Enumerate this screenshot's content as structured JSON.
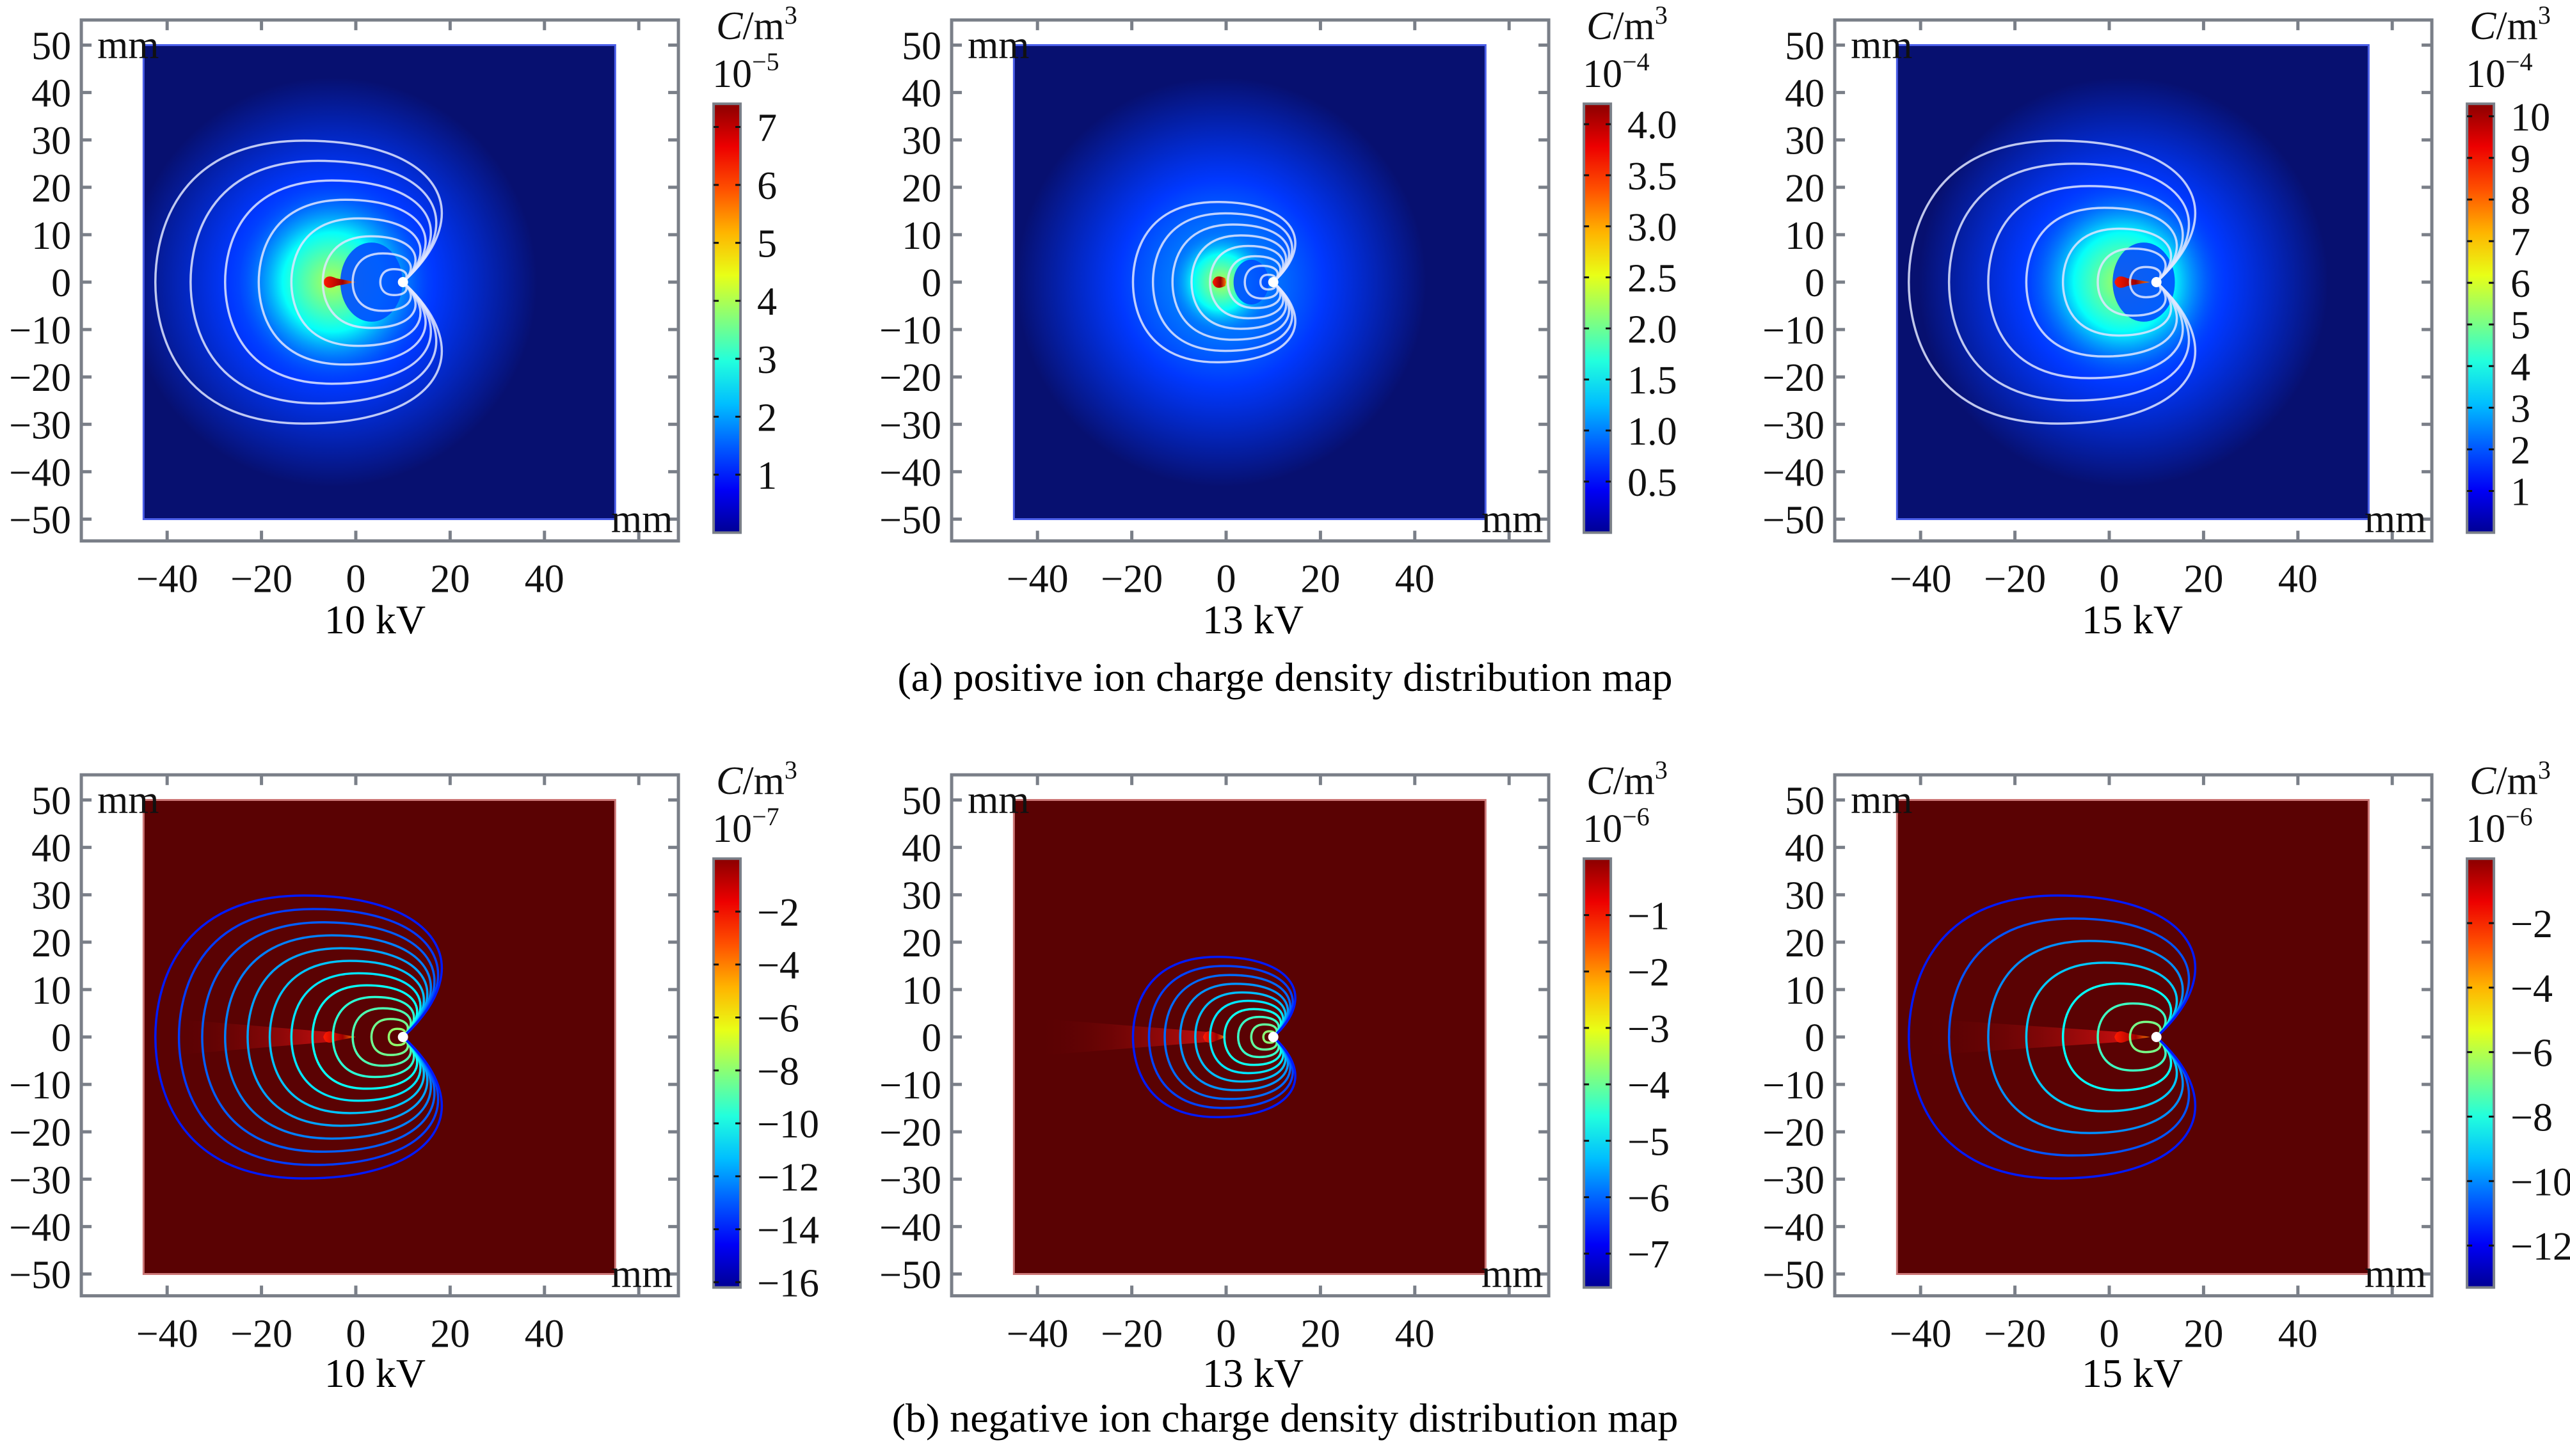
{
  "figure": {
    "caption_a": "(a) positive ion charge density distribution map",
    "caption_b": "(b) negative ion charge density distribution map"
  },
  "chart_data": [
    {
      "type": "heatmap",
      "id": "pos-10kv",
      "row": "a",
      "title": "10 kV",
      "polarity": "positive",
      "xlabel": "mm",
      "ylabel": "mm",
      "xlim": [
        -45,
        55
      ],
      "ylim": [
        -50,
        50
      ],
      "xticks": [
        -40,
        -20,
        0,
        20,
        40
      ],
      "yticks": [
        50,
        40,
        30,
        20,
        10,
        0,
        -10,
        -20,
        -30,
        -40,
        -50
      ],
      "colorbar": {
        "unit": "C/m",
        "unit_sup": "3",
        "scale": "10",
        "scale_exp": "−5",
        "range": [
          0,
          7.4
        ],
        "ticks": [
          1,
          2,
          3,
          4,
          5,
          6,
          7
        ],
        "tick_labels": [
          "1",
          "2",
          "3",
          "4",
          "5",
          "6",
          "7"
        ]
      },
      "background": "low",
      "peak": {
        "x": -5,
        "y": 0,
        "value": 7.4
      },
      "electrode": {
        "x": 10,
        "y": 0
      },
      "contour_extent_mm": 30,
      "num_contours": 8
    },
    {
      "type": "heatmap",
      "id": "pos-13kv",
      "row": "a",
      "title": "13 kV",
      "polarity": "positive",
      "xlabel": "mm",
      "ylabel": "mm",
      "xlim": [
        -45,
        55
      ],
      "ylim": [
        -50,
        50
      ],
      "xticks": [
        -40,
        -20,
        0,
        20,
        40
      ],
      "yticks": [
        50,
        40,
        30,
        20,
        10,
        0,
        -10,
        -20,
        -30,
        -40,
        -50
      ],
      "colorbar": {
        "unit": "C/m",
        "unit_sup": "3",
        "scale": "10",
        "scale_exp": "−4",
        "range": [
          0,
          4.2
        ],
        "ticks": [
          0.5,
          1.0,
          1.5,
          2.0,
          2.5,
          3.0,
          3.5,
          4.0
        ],
        "tick_labels": [
          "0.5",
          "1.0",
          "1.5",
          "2.0",
          "2.5",
          "3.0",
          "3.5",
          "4.0"
        ]
      },
      "background": "low",
      "peak": {
        "x": -1,
        "y": 0,
        "value": 4.2
      },
      "electrode": {
        "x": 10,
        "y": 0
      },
      "contour_extent_mm": 17,
      "num_contours": 8
    },
    {
      "type": "heatmap",
      "id": "pos-15kv",
      "row": "a",
      "title": "15 kV",
      "polarity": "positive",
      "xlabel": "mm",
      "ylabel": "mm",
      "xlim": [
        -45,
        55
      ],
      "ylim": [
        -50,
        50
      ],
      "xticks": [
        -40,
        -20,
        0,
        20,
        40
      ],
      "yticks": [
        50,
        40,
        30,
        20,
        10,
        0,
        -10,
        -20,
        -30,
        -40,
        -50
      ],
      "colorbar": {
        "unit": "C/m",
        "unit_sup": "3",
        "scale": "10",
        "scale_exp": "−4",
        "range": [
          0,
          10.3
        ],
        "ticks": [
          1,
          2,
          3,
          4,
          5,
          6,
          7,
          8,
          9,
          10
        ],
        "tick_labels": [
          "1",
          "2",
          "3",
          "4",
          "5",
          "6",
          "7",
          "8",
          "9",
          "10"
        ]
      },
      "background": "low",
      "peak": {
        "x": 3,
        "y": 0,
        "value": 10.3
      },
      "electrode": {
        "x": 10,
        "y": 0
      },
      "contour_extent_mm": 30,
      "num_contours": 7
    },
    {
      "type": "heatmap",
      "id": "neg-10kv",
      "row": "b",
      "title": "10 kV",
      "polarity": "negative",
      "xlabel": "mm",
      "ylabel": "mm",
      "xlim": [
        -45,
        55
      ],
      "ylim": [
        -50,
        50
      ],
      "xticks": [
        -40,
        -20,
        0,
        20,
        40
      ],
      "yticks": [
        50,
        40,
        30,
        20,
        10,
        0,
        -10,
        -20,
        -30,
        -40,
        -50
      ],
      "colorbar": {
        "unit": "C/m",
        "unit_sup": "3",
        "scale": "10",
        "scale_exp": "−7",
        "range": [
          -16.2,
          0
        ],
        "ticks": [
          -2,
          -4,
          -6,
          -8,
          -10,
          -12,
          -14,
          -16
        ],
        "tick_labels": [
          "−2",
          "−4",
          "−6",
          "−8",
          "−10",
          "−12",
          "−14",
          "−16"
        ]
      },
      "background": "high",
      "peak": {
        "x": -5,
        "y": 0,
        "value": -16.2
      },
      "electrode": {
        "x": 10,
        "y": 0
      },
      "contour_extent_mm": 30,
      "num_contours": 12
    },
    {
      "type": "heatmap",
      "id": "neg-13kv",
      "row": "b",
      "title": "13 kV",
      "polarity": "negative",
      "xlabel": "mm",
      "ylabel": "mm",
      "xlim": [
        -45,
        55
      ],
      "ylim": [
        -50,
        50
      ],
      "xticks": [
        -40,
        -20,
        0,
        20,
        40
      ],
      "yticks": [
        50,
        40,
        30,
        20,
        10,
        0,
        -10,
        -20,
        -30,
        -40,
        -50
      ],
      "colorbar": {
        "unit": "C/m",
        "unit_sup": "3",
        "scale": "10",
        "scale_exp": "−6",
        "range": [
          -7.6,
          0
        ],
        "ticks": [
          -1,
          -2,
          -3,
          -4,
          -5,
          -6,
          -7
        ],
        "tick_labels": [
          "−1",
          "−2",
          "−3",
          "−4",
          "−5",
          "−6",
          "−7"
        ]
      },
      "background": "high",
      "peak": {
        "x": -3,
        "y": 0,
        "value": -7.6
      },
      "electrode": {
        "x": 10,
        "y": 0
      },
      "contour_extent_mm": 17,
      "num_contours": 10
    },
    {
      "type": "heatmap",
      "id": "neg-15kv",
      "row": "b",
      "title": "15 kV",
      "polarity": "negative",
      "xlabel": "mm",
      "ylabel": "mm",
      "xlim": [
        -45,
        55
      ],
      "ylim": [
        -50,
        50
      ],
      "xticks": [
        -40,
        -20,
        0,
        20,
        40
      ],
      "yticks": [
        50,
        40,
        30,
        20,
        10,
        0,
        -10,
        -20,
        -30,
        -40,
        -50
      ],
      "colorbar": {
        "unit": "C/m",
        "unit_sup": "3",
        "scale": "10",
        "scale_exp": "−6",
        "range": [
          -13.3,
          0
        ],
        "ticks": [
          -2,
          -4,
          -6,
          -8,
          -10,
          -12
        ],
        "tick_labels": [
          "−2",
          "−4",
          "−6",
          "−8",
          "−10",
          "−12"
        ]
      },
      "background": "high",
      "peak": {
        "x": 3,
        "y": 0,
        "value": -13.3
      },
      "electrode": {
        "x": 10,
        "y": 0
      },
      "contour_extent_mm": 30,
      "num_contours": 7
    }
  ]
}
